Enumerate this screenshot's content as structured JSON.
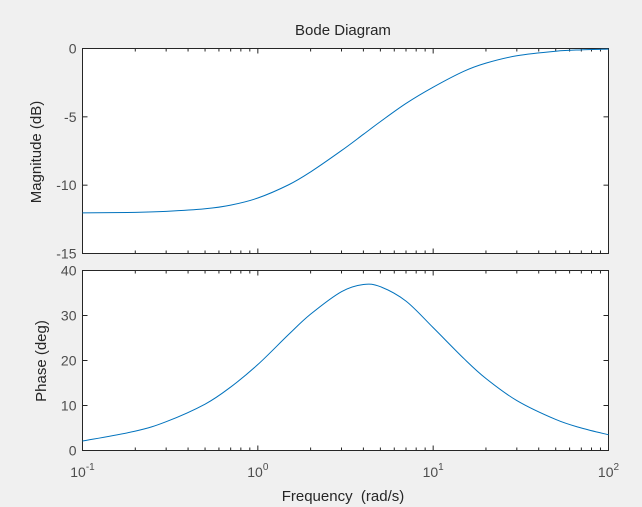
{
  "chart_data": {
    "type": "line",
    "title": "Bode Diagram",
    "xlabel": "Frequency  (rad/s)",
    "xscale": "log",
    "xlim": [
      0.1,
      100
    ],
    "xticks": [
      {
        "base": "10",
        "exp": "-1"
      },
      {
        "base": "10",
        "exp": "0"
      },
      {
        "base": "10",
        "exp": "1"
      },
      {
        "base": "10",
        "exp": "2"
      }
    ],
    "line_color": "#0072bd",
    "grid": false,
    "x": [
      0.1,
      0.2,
      0.3,
      0.5,
      0.7,
      1.0,
      1.5,
      2.0,
      3.0,
      4.0,
      5.0,
      7.0,
      10.0,
      15.0,
      20.0,
      30.0,
      50.0,
      70.0,
      100.0
    ],
    "panels": [
      {
        "ylabel": "Magnitude (dB)",
        "ylim": [
          -15,
          0
        ],
        "yticks": [
          "0",
          "-5",
          "-10",
          "-15"
        ],
        "ytick_values": [
          0,
          -5,
          -10,
          -15
        ],
        "series": [
          {
            "values": [
              -12.03,
              -11.99,
              -11.92,
              -11.73,
              -11.46,
              -10.94,
              -9.97,
              -9.03,
              -7.47,
              -6.28,
              -5.35,
              -4.02,
              -2.83,
              -1.66,
              -1.07,
              -0.53,
              -0.2,
              -0.1,
              -0.05
            ]
          }
        ]
      },
      {
        "ylabel": "Phase (deg)",
        "ylim": [
          0,
          40
        ],
        "yticks": [
          "40",
          "30",
          "20",
          "10",
          "0"
        ],
        "ytick_values": [
          40,
          30,
          20,
          10,
          0
        ],
        "series": [
          {
            "values": [
              2.1,
              4.3,
              6.4,
              10.3,
              14.1,
              19.1,
              25.8,
              30.3,
              35.3,
              36.9,
              36.4,
              33.2,
              27.3,
              20.4,
              16.0,
              11.1,
              6.9,
              5.0,
              3.5
            ]
          }
        ]
      }
    ]
  }
}
